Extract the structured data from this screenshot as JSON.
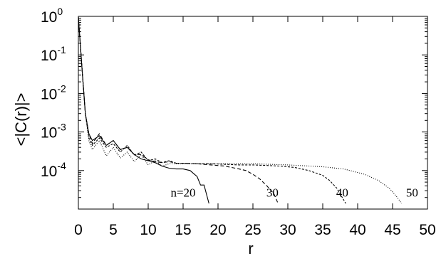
{
  "chart_data": {
    "type": "line",
    "title": "",
    "xlabel": "r",
    "ylabel": "<|C(r)|>",
    "xlim": [
      0,
      50
    ],
    "ylim": [
      1e-05,
      1
    ],
    "yscale": "log",
    "grid": false,
    "x_ticks": [
      "0",
      "5",
      "10",
      "15",
      "20",
      "25",
      "30",
      "35",
      "40",
      "45",
      "50"
    ],
    "y_ticks": [
      {
        "value": 1,
        "base": "10",
        "exp": "0"
      },
      {
        "value": 0.1,
        "base": "10",
        "exp": "-1"
      },
      {
        "value": 0.01,
        "base": "10",
        "exp": "-2"
      },
      {
        "value": 0.001,
        "base": "10",
        "exp": "-3"
      },
      {
        "value": 0.0001,
        "base": "10",
        "exp": "-4"
      }
    ],
    "annotations": [
      {
        "text": "n=20",
        "x": 15,
        "y": 2.1e-05
      },
      {
        "text": "30",
        "x": 27.8,
        "y": 2.1e-05
      },
      {
        "text": "40",
        "x": 37.8,
        "y": 2.1e-05
      },
      {
        "text": "50",
        "x": 47.8,
        "y": 2.1e-05
      }
    ],
    "series": [
      {
        "name": "n=20",
        "style": "solid",
        "x": [
          0,
          0.5,
          1,
          1.5,
          2,
          3,
          4,
          5,
          6,
          7,
          8,
          9,
          10,
          11,
          12,
          13,
          14,
          15,
          16,
          17,
          17.5,
          18,
          18.7
        ],
        "y": [
          0.95,
          0.05,
          0.003,
          0.0009,
          0.0006,
          0.0008,
          0.00045,
          0.0006,
          0.00035,
          0.0004,
          0.00026,
          0.0002,
          0.00018,
          0.00016,
          0.00013,
          0.000115,
          0.00011,
          0.00011,
          0.0001,
          7e-05,
          4.2e-05,
          4.2e-05,
          1.4e-05
        ]
      },
      {
        "name": "30",
        "style": "dashed",
        "x": [
          0,
          0.5,
          1,
          1.5,
          2,
          3,
          4,
          5,
          6,
          7,
          8,
          9,
          10,
          11,
          12,
          13,
          14,
          15,
          17,
          19,
          21,
          23,
          24,
          25,
          26,
          27,
          28,
          28.6
        ],
        "y": [
          0.95,
          0.05,
          0.003,
          0.0009,
          0.0005,
          0.0009,
          0.00045,
          0.0006,
          0.00035,
          0.0004,
          0.00026,
          0.00026,
          0.00019,
          0.00017,
          0.00016,
          0.00017,
          0.000155,
          0.000155,
          0.00015,
          0.00014,
          0.00013,
          0.00011,
          0.0001,
          8e-05,
          6e-05,
          4e-05,
          2.5e-05,
          1.4e-05
        ]
      },
      {
        "name": "40",
        "style": "dashed-fine",
        "x": [
          0,
          0.5,
          1,
          1.5,
          2,
          3,
          4,
          5,
          6,
          7,
          8,
          9,
          10,
          11,
          12,
          13,
          14,
          15,
          17,
          19,
          21,
          23,
          25,
          27,
          29,
          31,
          33,
          35,
          36,
          37,
          37.8,
          38.3
        ],
        "y": [
          0.95,
          0.05,
          0.003,
          0.0007,
          0.00045,
          0.0007,
          0.0004,
          0.0005,
          0.0003,
          0.00045,
          0.00025,
          0.0003,
          0.00018,
          0.0002,
          0.00016,
          0.00018,
          0.000155,
          0.000155,
          0.00015,
          0.00015,
          0.000145,
          0.00014,
          0.00014,
          0.000135,
          0.00013,
          0.00012,
          0.0001,
          7.5e-05,
          5.5e-05,
          3.5e-05,
          2e-05,
          1.4e-05
        ]
      },
      {
        "name": "50",
        "style": "dotted",
        "x": [
          0,
          0.5,
          1,
          1.5,
          2,
          3,
          4,
          5,
          6,
          7,
          8,
          9,
          10,
          11,
          12,
          13,
          14,
          16,
          20,
          25,
          30,
          35,
          38,
          41,
          43,
          44.5,
          45.5,
          46.3
        ],
        "y": [
          0.95,
          0.05,
          0.003,
          0.0006,
          0.00035,
          0.0006,
          0.00024,
          0.0004,
          0.00021,
          0.0003,
          0.00017,
          0.00026,
          0.00014,
          0.00018,
          0.00013,
          0.00015,
          0.00015,
          0.00015,
          0.00015,
          0.00015,
          0.00014,
          0.000125,
          0.00011,
          8e-05,
          5.5e-05,
          3.5e-05,
          2.2e-05,
          1.4e-05
        ]
      }
    ]
  }
}
